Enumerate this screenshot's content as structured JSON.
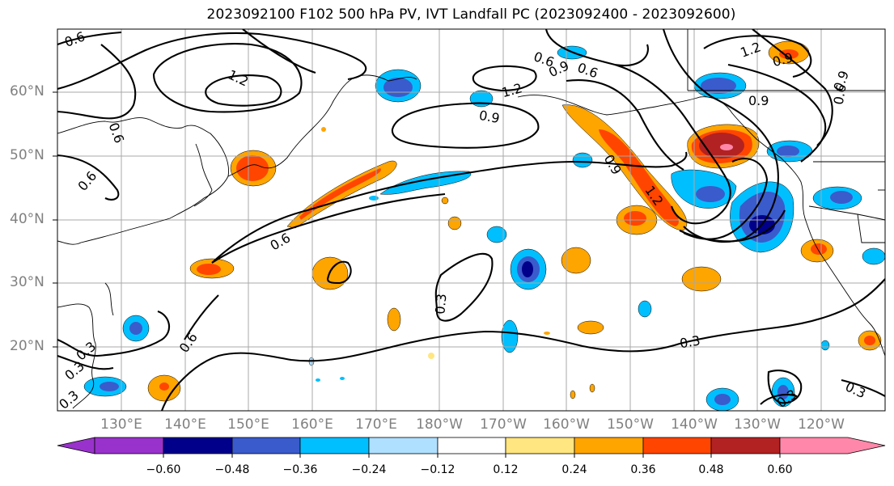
{
  "title": "2023092100 F102 500 hPa PV, IVT Landfall PC (2023092400 - 2023092600)",
  "latitude_labels": [
    "60°N",
    "50°N",
    "40°N",
    "30°N",
    "20°N"
  ],
  "longitude_labels": [
    "130°E",
    "140°E",
    "150°E",
    "160°E",
    "170°E",
    "180°W",
    "170°W",
    "160°W",
    "150°W",
    "140°W",
    "130°W",
    "120°W"
  ],
  "colorbar": {
    "ticks": [
      "−0.60",
      "−0.48",
      "−0.36",
      "−0.24",
      "−0.12",
      "0.12",
      "0.24",
      "0.36",
      "0.48",
      "0.60"
    ],
    "colors": [
      "#9932cc",
      "#00008b",
      "#3a5bcc",
      "#00bfff",
      "#b0e0ff",
      "#ffffff",
      "#ffe680",
      "#ffa500",
      "#ff4500",
      "#b22222",
      "#ff88aa"
    ]
  },
  "contour_labels": [
    "0.6",
    "0.6",
    "0.6",
    "0.6",
    "0.6",
    "0.6",
    "0.6",
    "0.6",
    "1.2",
    "1.2",
    "1.2",
    "1.2",
    "0.9",
    "0.9",
    "0.9",
    "0.9",
    "0.9",
    "0.9",
    "0.3",
    "0.3",
    "0.3",
    "0.3",
    "0.3",
    "0.3",
    "0.3"
  ]
}
